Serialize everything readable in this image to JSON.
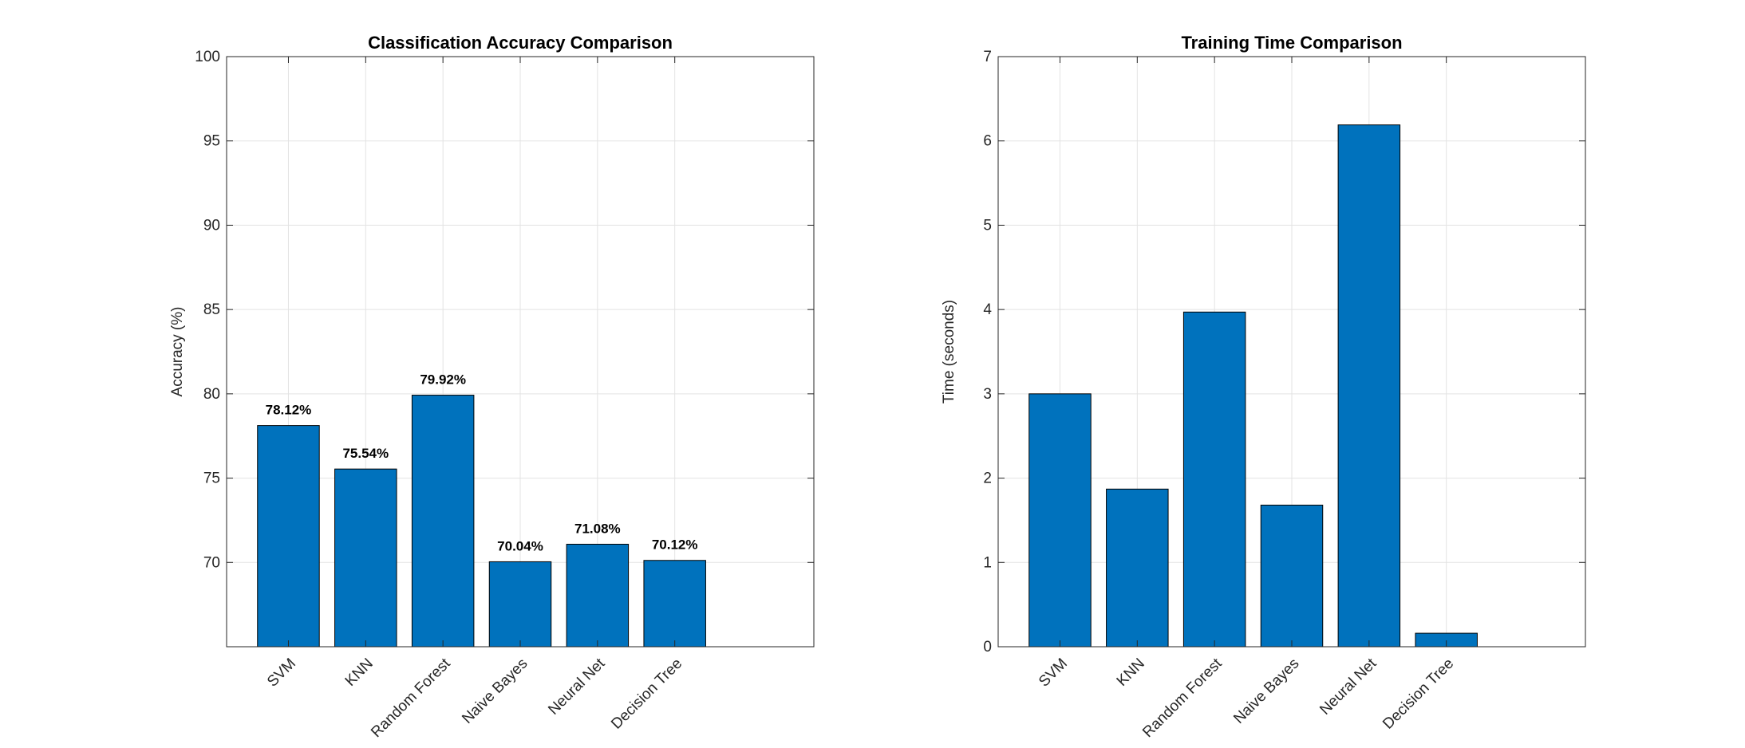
{
  "chart_data": [
    {
      "type": "bar",
      "title": "Classification Accuracy Comparison",
      "xlabel": "",
      "ylabel": "Accuracy (%)",
      "categories": [
        "SVM",
        "KNN",
        "Random Forest",
        "Naive Bayes",
        "Neural Net",
        "Decision Tree"
      ],
      "values": [
        78.12,
        75.54,
        79.92,
        70.04,
        71.08,
        70.12
      ],
      "data_labels": [
        "78.12%",
        "75.54%",
        "79.92%",
        "70.04%",
        "71.08%",
        "70.12%"
      ],
      "ylim": [
        65,
        100
      ],
      "yticks": [
        70,
        75,
        80,
        85,
        90,
        95,
        100
      ],
      "xlim": [
        0.2,
        7.8
      ],
      "grid": true,
      "bar_color": "#0072BD"
    },
    {
      "type": "bar",
      "title": "Training Time Comparison",
      "xlabel": "",
      "ylabel": "Time (seconds)",
      "categories": [
        "SVM",
        "KNN",
        "Random Forest",
        "Naive Bayes",
        "Neural Net",
        "Decision Tree"
      ],
      "values": [
        3.0,
        1.87,
        3.97,
        1.68,
        6.19,
        0.16
      ],
      "ylim": [
        0,
        7
      ],
      "yticks": [
        0,
        1,
        2,
        3,
        4,
        5,
        6,
        7
      ],
      "xlim": [
        0.2,
        7.8
      ],
      "grid": true,
      "bar_color": "#0072BD"
    }
  ]
}
